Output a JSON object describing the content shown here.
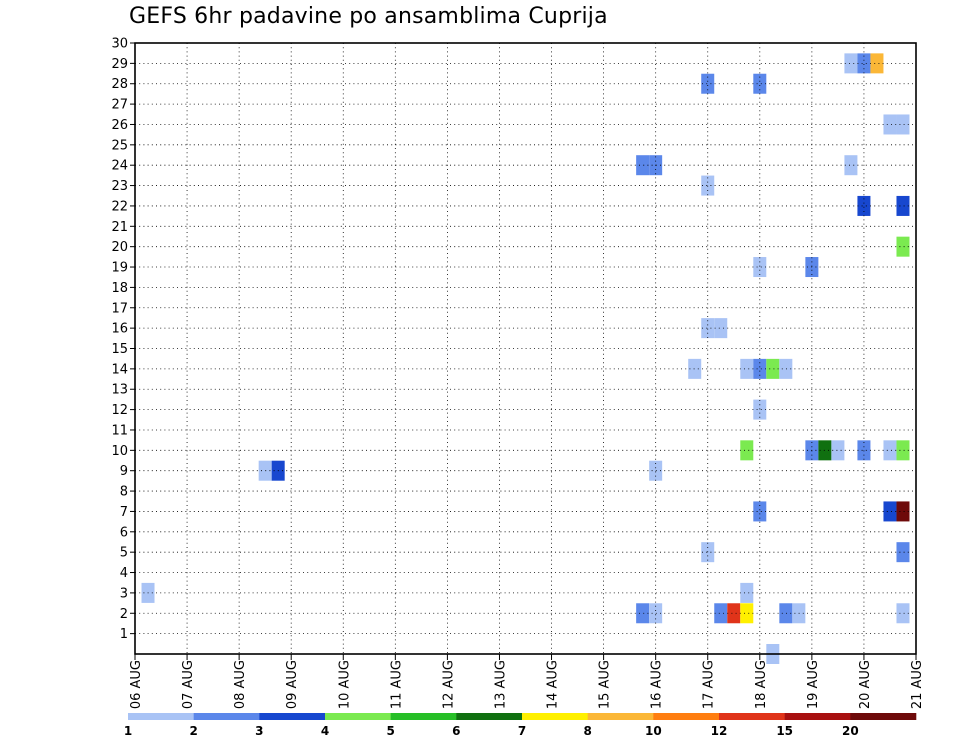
{
  "chart_data": {
    "type": "heatmap",
    "title": "GEFS 6hr padavine po ansamblima Cuprija",
    "xlabel": "",
    "ylabel": "",
    "x_ticks": [
      "06 AUG",
      "07 AUG",
      "08 AUG",
      "09 AUG",
      "10 AUG",
      "11 AUG",
      "12 AUG",
      "13 AUG",
      "14 AUG",
      "15 AUG",
      "16 AUG",
      "17 AUG",
      "18 AUG",
      "19 AUG",
      "20 AUG",
      "21 AUG"
    ],
    "y_ticks": [
      "1",
      "2",
      "3",
      "4",
      "5",
      "6",
      "7",
      "8",
      "9",
      "10",
      "11",
      "12",
      "13",
      "14",
      "15",
      "16",
      "17",
      "18",
      "19",
      "20",
      "21",
      "22",
      "23",
      "24",
      "25",
      "26",
      "27",
      "28",
      "29",
      "30"
    ],
    "x_range": [
      "06 AUG 00Z",
      "21 AUG 00Z"
    ],
    "x_step": "6hr",
    "y_range": [
      0,
      30
    ],
    "grid": true,
    "colorbar": {
      "position": "bottom",
      "labels": [
        "1",
        "2",
        "3",
        "4",
        "5",
        "6",
        "7",
        "8",
        "10",
        "12",
        "15",
        "20"
      ],
      "colors": [
        "#a9c3f5",
        "#5b87ea",
        "#1747cf",
        "#7bea50",
        "#27bf27",
        "#107010",
        "#fff000",
        "#fbb737",
        "#ff7e10",
        "#e0341a",
        "#a81010",
        "#6e0a0a"
      ]
    },
    "cells": [
      {
        "member": 3,
        "time": "06 AUG 06Z",
        "color": "#a9c3f5"
      },
      {
        "member": 9,
        "time": "08 AUG 12Z",
        "color": "#a9c3f5"
      },
      {
        "member": 9,
        "time": "08 AUG 18Z",
        "color": "#1747cf"
      },
      {
        "member": 2,
        "time": "15 AUG 18Z",
        "color": "#5b87ea"
      },
      {
        "member": 2,
        "time": "16 AUG 00Z",
        "color": "#a9c3f5"
      },
      {
        "member": 9,
        "time": "16 AUG 00Z",
        "color": "#a9c3f5"
      },
      {
        "member": 24,
        "time": "15 AUG 18Z",
        "color": "#5b87ea"
      },
      {
        "member": 24,
        "time": "16 AUG 00Z",
        "color": "#5b87ea"
      },
      {
        "member": 14,
        "time": "16 AUG 18Z",
        "color": "#a9c3f5"
      },
      {
        "member": 5,
        "time": "17 AUG 00Z",
        "color": "#a9c3f5"
      },
      {
        "member": 16,
        "time": "17 AUG 00Z",
        "color": "#a9c3f5"
      },
      {
        "member": 16,
        "time": "17 AUG 06Z",
        "color": "#a9c3f5"
      },
      {
        "member": 23,
        "time": "17 AUG 00Z",
        "color": "#a9c3f5"
      },
      {
        "member": 28,
        "time": "17 AUG 00Z",
        "color": "#5b87ea"
      },
      {
        "member": 2,
        "time": "17 AUG 06Z",
        "color": "#5b87ea"
      },
      {
        "member": 2,
        "time": "17 AUG 12Z",
        "color": "#e0341a"
      },
      {
        "member": 2,
        "time": "17 AUG 18Z",
        "color": "#fff000"
      },
      {
        "member": 3,
        "time": "17 AUG 18Z",
        "color": "#a9c3f5"
      },
      {
        "member": 10,
        "time": "17 AUG 18Z",
        "color": "#7bea50"
      },
      {
        "member": 14,
        "time": "17 AUG 18Z",
        "color": "#a9c3f5"
      },
      {
        "member": 14,
        "time": "18 AUG 00Z",
        "color": "#5b87ea"
      },
      {
        "member": 14,
        "time": "18 AUG 06Z",
        "color": "#7bea50"
      },
      {
        "member": 14,
        "time": "18 AUG 12Z",
        "color": "#a9c3f5"
      },
      {
        "member": 7,
        "time": "18 AUG 00Z",
        "color": "#5b87ea"
      },
      {
        "member": 12,
        "time": "18 AUG 00Z",
        "color": "#a9c3f5"
      },
      {
        "member": 19,
        "time": "18 AUG 00Z",
        "color": "#a9c3f5"
      },
      {
        "member": 28,
        "time": "18 AUG 00Z",
        "color": "#5b87ea"
      },
      {
        "member": 0,
        "time": "18 AUG 06Z",
        "color": "#a9c3f5"
      },
      {
        "member": 2,
        "time": "18 AUG 12Z",
        "color": "#5b87ea"
      },
      {
        "member": 2,
        "time": "18 AUG 18Z",
        "color": "#a9c3f5"
      },
      {
        "member": 10,
        "time": "19 AUG 00Z",
        "color": "#5b87ea"
      },
      {
        "member": 10,
        "time": "19 AUG 06Z",
        "color": "#107010"
      },
      {
        "member": 10,
        "time": "19 AUG 12Z",
        "color": "#a9c3f5"
      },
      {
        "member": 19,
        "time": "19 AUG 00Z",
        "color": "#5b87ea"
      },
      {
        "member": 24,
        "time": "19 AUG 18Z",
        "color": "#a9c3f5"
      },
      {
        "member": 29,
        "time": "19 AUG 18Z",
        "color": "#a9c3f5"
      },
      {
        "member": 29,
        "time": "20 AUG 00Z",
        "color": "#5b87ea"
      },
      {
        "member": 29,
        "time": "20 AUG 06Z",
        "color": "#fbb737"
      },
      {
        "member": 22,
        "time": "20 AUG 00Z",
        "color": "#1747cf"
      },
      {
        "member": 10,
        "time": "20 AUG 00Z",
        "color": "#5b87ea"
      },
      {
        "member": 10,
        "time": "20 AUG 12Z",
        "color": "#a9c3f5"
      },
      {
        "member": 10,
        "time": "20 AUG 18Z",
        "color": "#7bea50"
      },
      {
        "member": 26,
        "time": "20 AUG 12Z",
        "color": "#a9c3f5"
      },
      {
        "member": 26,
        "time": "20 AUG 18Z",
        "color": "#a9c3f5"
      },
      {
        "member": 7,
        "time": "20 AUG 12Z",
        "color": "#1747cf"
      },
      {
        "member": 7,
        "time": "20 AUG 18Z",
        "color": "#6e0a0a"
      },
      {
        "member": 22,
        "time": "20 AUG 18Z",
        "color": "#1747cf"
      },
      {
        "member": 20,
        "time": "20 AUG 18Z",
        "color": "#7bea50"
      },
      {
        "member": 5,
        "time": "20 AUG 18Z",
        "color": "#5b87ea"
      },
      {
        "member": 2,
        "time": "20 AUG 18Z",
        "color": "#a9c3f5"
      }
    ]
  }
}
